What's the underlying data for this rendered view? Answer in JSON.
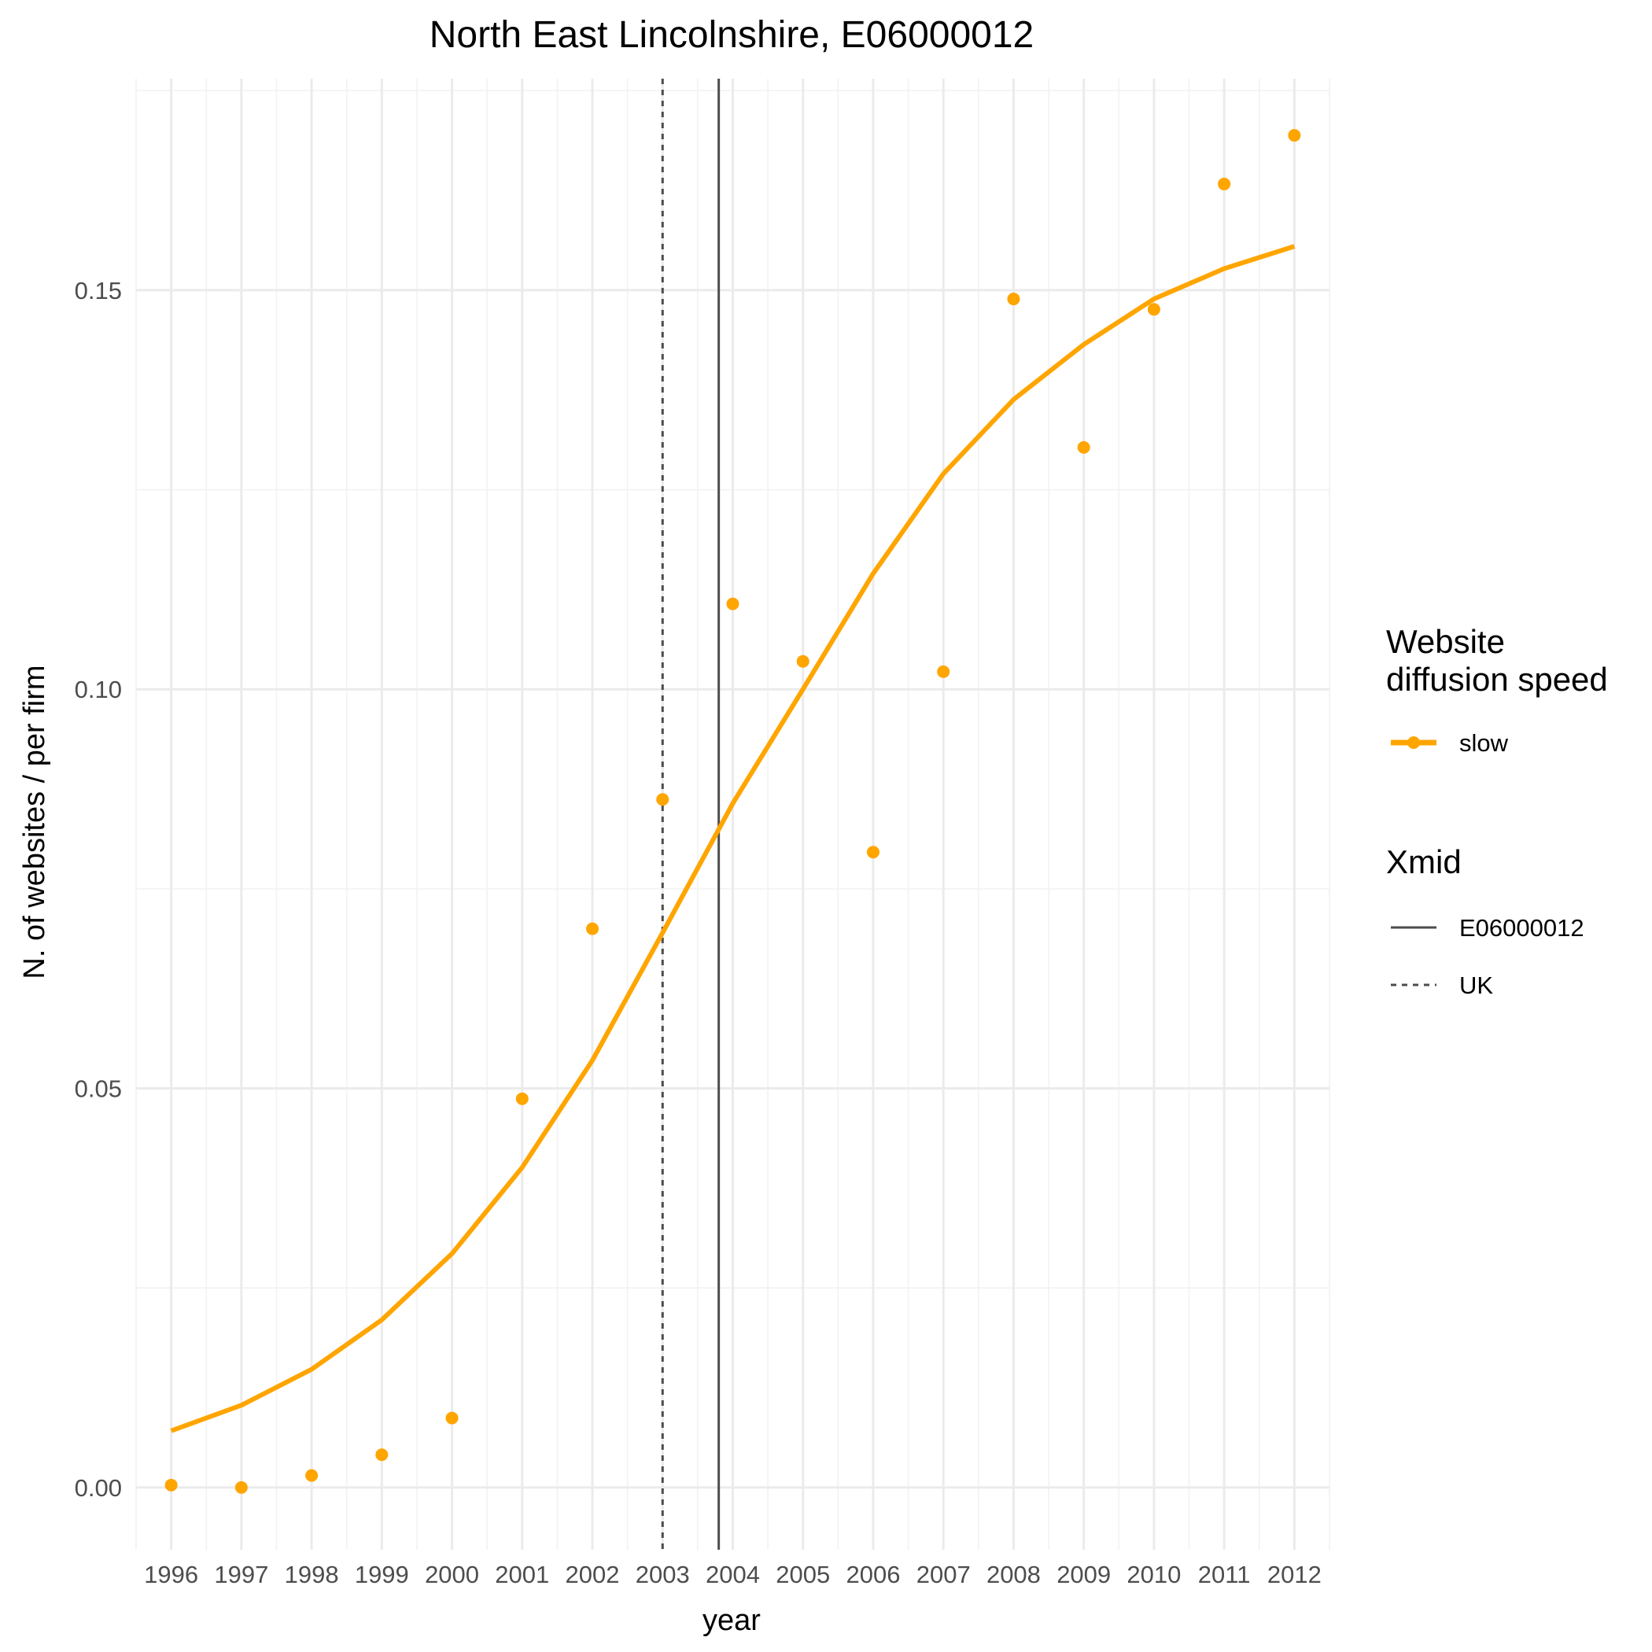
{
  "chart_data": {
    "type": "line",
    "title": "North East Lincolnshire, E06000012",
    "xlabel": "year",
    "ylabel": "N. of websites / per firm",
    "x": [
      1996,
      1997,
      1998,
      1999,
      2000,
      2001,
      2002,
      2003,
      2004,
      2005,
      2006,
      2007,
      2008,
      2009,
      2010,
      2011,
      2012
    ],
    "xlim": [
      1995.5,
      2012.5
    ],
    "ylim": [
      -0.0078,
      0.1765
    ],
    "y_ticks": [
      0.0,
      0.05,
      0.1,
      0.15
    ],
    "y_tick_labels": [
      "0.00",
      "0.05",
      "0.10",
      "0.15"
    ],
    "x_tick_labels": [
      "1996",
      "1997",
      "1998",
      "1999",
      "2000",
      "2001",
      "2002",
      "2003",
      "2004",
      "2005",
      "2006",
      "2007",
      "2008",
      "2009",
      "2010",
      "2011",
      "2012"
    ],
    "grid": true,
    "legend_position": "right",
    "series": [
      {
        "name": "slow",
        "color": "#FFA500",
        "points": [
          0.0003,
          0.0,
          0.0015,
          0.0041,
          0.0087,
          0.0487,
          0.07,
          0.0862,
          0.1107,
          0.1035,
          0.0796,
          0.1022,
          0.1489,
          0.1303,
          0.1476,
          0.1633,
          0.1694
        ],
        "fit": [
          0.0071,
          0.0103,
          0.0148,
          0.021,
          0.0293,
          0.0401,
          0.0535,
          0.0695,
          0.0857,
          0.1,
          0.1145,
          0.127,
          0.1363,
          0.1432,
          0.1489,
          0.1527,
          0.1555
        ]
      }
    ],
    "vlines": [
      {
        "name": "E06000012",
        "x": 2003.8,
        "linetype": "solid",
        "color": "#4d4d4d"
      },
      {
        "name": "UK",
        "x": 2003.0,
        "linetype": "dashed",
        "color": "#4d4d4d"
      }
    ],
    "legend": {
      "speed_title_line1": "Website",
      "speed_title_line2": "diffusion speed",
      "speed_item": "slow",
      "xmid_title": "Xmid",
      "xmid_items": [
        "E06000012",
        "UK"
      ]
    }
  }
}
